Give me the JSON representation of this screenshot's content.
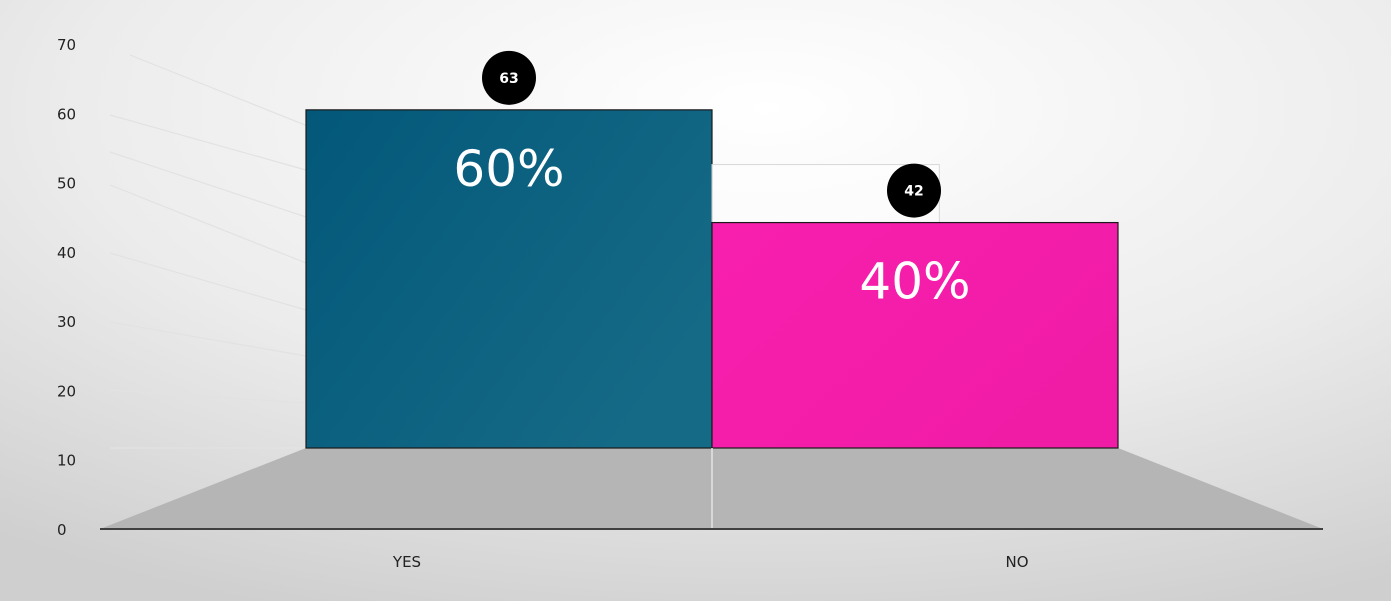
{
  "chart_data": {
    "type": "bar",
    "categories": [
      "YES",
      "NO"
    ],
    "values": [
      63,
      42
    ],
    "percent_labels": [
      "60%",
      "40%"
    ],
    "title": "",
    "xlabel": "",
    "ylabel": "",
    "ylim": [
      0,
      70
    ],
    "yticks": [
      0,
      10,
      20,
      30,
      40,
      50,
      60,
      70
    ],
    "grid": false,
    "legend": "none",
    "colors": {
      "bar_yes": "#03587a",
      "bar_yes_light": "#156a86",
      "bar_no": "#f01ca6",
      "bar_no_light": "#f81fae",
      "floor": "#b5b5b5",
      "badge": "#000000",
      "axis": "#404040"
    }
  }
}
